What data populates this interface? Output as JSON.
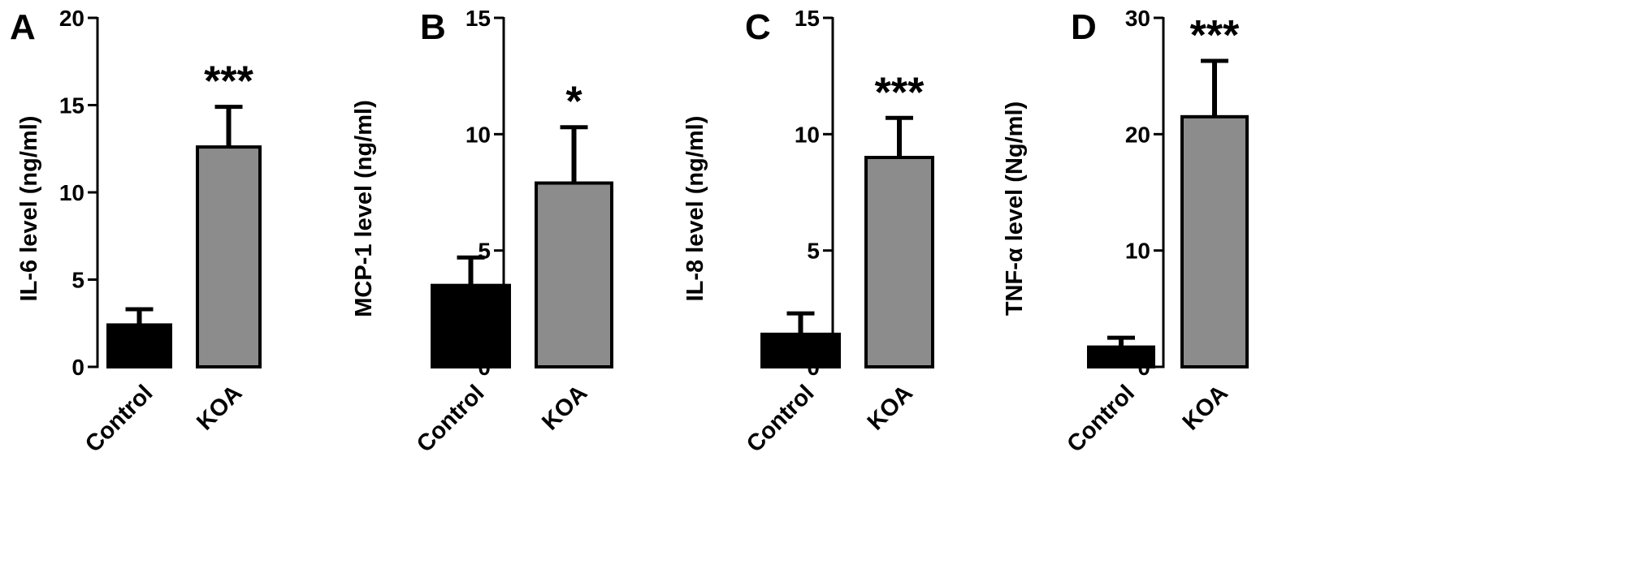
{
  "chart_data": [
    {
      "type": "bar",
      "panel": "A",
      "ylabel": "IL-6 level (ng/ml)",
      "categories": [
        "Control",
        "KOA"
      ],
      "values": [
        2.4,
        12.6
      ],
      "errors": [
        0.9,
        2.3
      ],
      "significance": [
        "",
        "***"
      ],
      "ylim": [
        0,
        20
      ],
      "yticks": [
        "0",
        "5",
        "10",
        "15",
        "20"
      ],
      "colors": [
        "#000000",
        "#8c8c8c"
      ]
    },
    {
      "type": "bar",
      "panel": "B",
      "ylabel": "MCP-1 level (ng/ml)",
      "categories": [
        "Control",
        "KOA"
      ],
      "values": [
        3.5,
        7.9
      ],
      "errors": [
        1.2,
        2.4
      ],
      "significance": [
        "",
        "*"
      ],
      "ylim": [
        0,
        15
      ],
      "yticks": [
        "0",
        "5",
        "10",
        "15"
      ],
      "colors": [
        "#000000",
        "#8c8c8c"
      ]
    },
    {
      "type": "bar",
      "panel": "C",
      "ylabel": "IL-8 level (ng/ml)",
      "categories": [
        "Control",
        "KOA"
      ],
      "values": [
        1.4,
        9.0
      ],
      "errors": [
        0.9,
        1.7
      ],
      "significance": [
        "",
        "***"
      ],
      "ylim": [
        0,
        15
      ],
      "yticks": [
        "0",
        "5",
        "10",
        "15"
      ],
      "colors": [
        "#000000",
        "#8c8c8c"
      ]
    },
    {
      "type": "bar",
      "panel": "D",
      "ylabel": "TNF-α level (Ng/ml)",
      "categories": [
        "Control",
        "KOA"
      ],
      "values": [
        1.7,
        21.5
      ],
      "errors": [
        0.8,
        4.8
      ],
      "significance": [
        "",
        "***"
      ],
      "ylim": [
        0,
        30
      ],
      "yticks": [
        "0",
        "10",
        "20",
        "30"
      ],
      "colors": [
        "#000000",
        "#8c8c8c"
      ]
    }
  ]
}
